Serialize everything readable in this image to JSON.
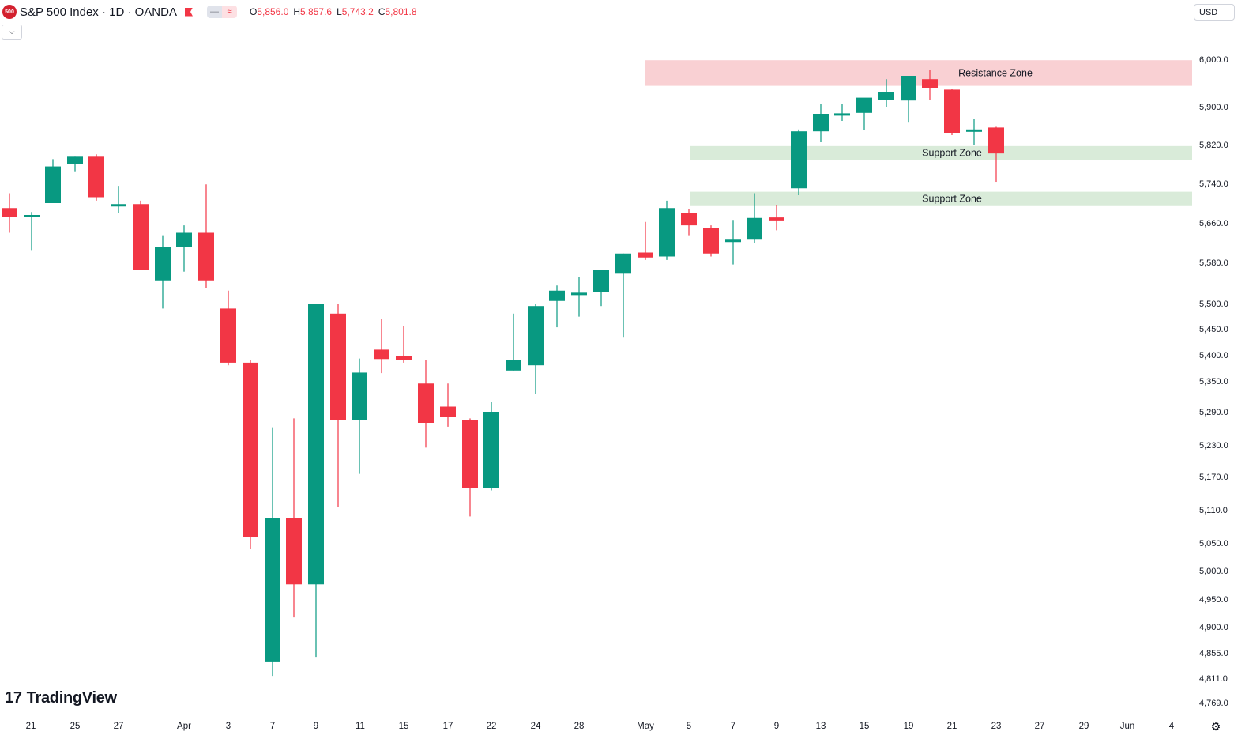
{
  "header": {
    "symbol_badge": "500",
    "title": "S&P 500 Index · 1D · OANDA",
    "pill_a": "—",
    "pill_b": "≈",
    "ohlc": {
      "o_label": "O",
      "o": "5,856.0",
      "h_label": "H",
      "h": "5,857.6",
      "l_label": "L",
      "l": "5,743.2",
      "c_label": "C",
      "c": "5,801.8"
    },
    "collapse_icon": "chevron-down-icon"
  },
  "currency": "USD",
  "brand": {
    "name": "TradingView",
    "logo_text": "17"
  },
  "colors": {
    "up": "#089981",
    "down": "#f23645",
    "resistance": "#f9d0d3",
    "support": "#d9ebd9",
    "text": "#131722",
    "axis": "#787b86"
  },
  "chart_data": {
    "type": "candlestick",
    "title": "S&P 500 Index · 1D · OANDA",
    "y_axis_ticks": [
      "6,000.0",
      "5,900.0",
      "5,820.0",
      "5,740.0",
      "5,660.0",
      "5,580.0",
      "5,500.0",
      "5,450.0",
      "5,400.0",
      "5,350.0",
      "5,290.0",
      "5,230.0",
      "5,170.0",
      "5,110.0",
      "5,050.0",
      "5,000.0",
      "4,950.0",
      "4,900.0",
      "4,855.0",
      "4,811.0",
      "4,769.0"
    ],
    "x_axis_labels": [
      "21",
      "25",
      "27",
      "Apr",
      "3",
      "7",
      "9",
      "11",
      "15",
      "17",
      "22",
      "24",
      "28",
      "May",
      "5",
      "7",
      "9",
      "13",
      "15",
      "19",
      "21",
      "23",
      "27",
      "29",
      "Jun",
      "4"
    ],
    "ylim": [
      4750,
      6020
    ],
    "candles": [
      {
        "o": 5690,
        "h": 5720,
        "l": 5640,
        "c": 5672
      },
      {
        "o": 5672,
        "h": 5682,
        "l": 5605,
        "c": 5676
      },
      {
        "o": 5700,
        "h": 5790,
        "l": 5700,
        "c": 5775
      },
      {
        "o": 5780,
        "h": 5795,
        "l": 5765,
        "c": 5795
      },
      {
        "o": 5795,
        "h": 5800,
        "l": 5705,
        "c": 5712
      },
      {
        "o": 5698,
        "h": 5735,
        "l": 5680,
        "c": 5698
      },
      {
        "o": 5698,
        "h": 5705,
        "l": 5565,
        "c": 5565
      },
      {
        "o": 5545,
        "h": 5635,
        "l": 5490,
        "c": 5612
      },
      {
        "o": 5612,
        "h": 5655,
        "l": 5562,
        "c": 5640
      },
      {
        "o": 5640,
        "h": 5738,
        "l": 5530,
        "c": 5545
      },
      {
        "o": 5490,
        "h": 5525,
        "l": 5380,
        "c": 5385
      },
      {
        "o": 5385,
        "h": 5390,
        "l": 5040,
        "c": 5060
      },
      {
        "o": 4840,
        "h": 5262,
        "l": 4815,
        "c": 5095
      },
      {
        "o": 5095,
        "h": 5278,
        "l": 4917,
        "c": 4976
      },
      {
        "o": 4976,
        "h": 5500,
        "l": 4848,
        "c": 5500
      },
      {
        "o": 5480,
        "h": 5500,
        "l": 5115,
        "c": 5275
      },
      {
        "o": 5275,
        "h": 5393,
        "l": 5175,
        "c": 5366
      },
      {
        "o": 5410,
        "h": 5470,
        "l": 5365,
        "c": 5392
      },
      {
        "o": 5397,
        "h": 5455,
        "l": 5385,
        "c": 5390
      },
      {
        "o": 5345,
        "h": 5390,
        "l": 5225,
        "c": 5270
      },
      {
        "o": 5300,
        "h": 5345,
        "l": 5263,
        "c": 5280
      },
      {
        "o": 5275,
        "h": 5278,
        "l": 5098,
        "c": 5150
      },
      {
        "o": 5150,
        "h": 5310,
        "l": 5145,
        "c": 5290
      },
      {
        "o": 5370,
        "h": 5480,
        "l": 5370,
        "c": 5390
      },
      {
        "o": 5380,
        "h": 5500,
        "l": 5325,
        "c": 5495
      },
      {
        "o": 5505,
        "h": 5535,
        "l": 5453,
        "c": 5525
      },
      {
        "o": 5517,
        "h": 5552,
        "l": 5474,
        "c": 5521
      },
      {
        "o": 5522,
        "h": 5565,
        "l": 5495,
        "c": 5565
      },
      {
        "o": 5558,
        "h": 5598,
        "l": 5433,
        "c": 5598
      },
      {
        "o": 5600,
        "h": 5662,
        "l": 5585,
        "c": 5590
      },
      {
        "o": 5592,
        "h": 5705,
        "l": 5585,
        "c": 5690
      },
      {
        "o": 5680,
        "h": 5688,
        "l": 5635,
        "c": 5655
      },
      {
        "o": 5650,
        "h": 5655,
        "l": 5592,
        "c": 5598
      },
      {
        "o": 5622,
        "h": 5666,
        "l": 5576,
        "c": 5626
      },
      {
        "o": 5626,
        "h": 5720,
        "l": 5620,
        "c": 5670
      },
      {
        "o": 5671,
        "h": 5696,
        "l": 5645,
        "c": 5665
      },
      {
        "o": 5730,
        "h": 5852,
        "l": 5716,
        "c": 5848
      },
      {
        "o": 5848,
        "h": 5905,
        "l": 5825,
        "c": 5885
      },
      {
        "o": 5883,
        "h": 5905,
        "l": 5870,
        "c": 5886
      },
      {
        "o": 5887,
        "h": 5912,
        "l": 5850,
        "c": 5919
      },
      {
        "o": 5914,
        "h": 5958,
        "l": 5900,
        "c": 5930
      },
      {
        "o": 5913,
        "h": 5965,
        "l": 5868,
        "c": 5965
      },
      {
        "o": 5958,
        "h": 5978,
        "l": 5914,
        "c": 5940
      },
      {
        "o": 5936,
        "h": 5938,
        "l": 5840,
        "c": 5845
      },
      {
        "o": 5848,
        "h": 5875,
        "l": 5820,
        "c": 5852
      },
      {
        "o": 5856,
        "h": 5857.6,
        "l": 5743.2,
        "c": 5801.8
      }
    ],
    "zones": [
      {
        "label": "Resistance Zone",
        "type": "resistance",
        "low": 5944,
        "high": 5998
      },
      {
        "label": "Support Zone",
        "type": "support",
        "low": 5789,
        "high": 5817
      },
      {
        "label": "Support Zone",
        "type": "support",
        "low": 5694,
        "high": 5723
      }
    ]
  }
}
